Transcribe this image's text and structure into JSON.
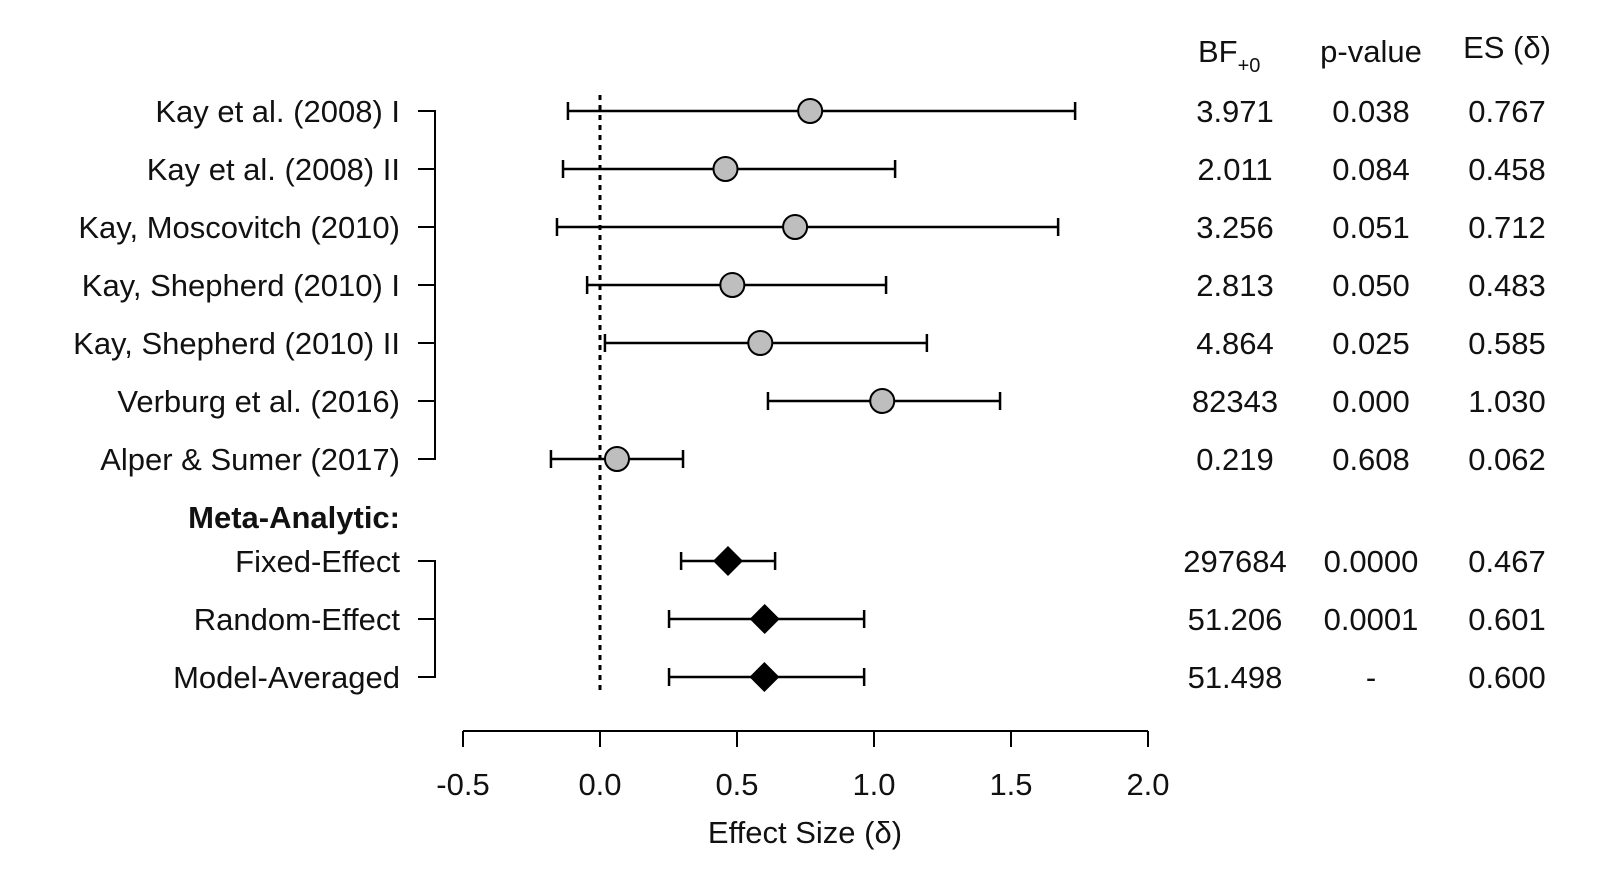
{
  "chart_data": {
    "type": "forest",
    "xlabel": "Effect Size (δ)",
    "xlim": [
      -0.5,
      2.0
    ],
    "xticks": [
      "-0.5",
      "0.0",
      "0.5",
      "1.0",
      "1.5",
      "2.0"
    ],
    "xtick_values": [
      -0.5,
      0.0,
      0.5,
      1.0,
      1.5,
      2.0
    ],
    "reference_line": 0.0,
    "columns": {
      "bf_main": "BF",
      "bf_sub": "+0",
      "p": "p-value",
      "es": "ES (δ)"
    },
    "studies": [
      {
        "label": "Kay et al. (2008) I",
        "es": 0.767,
        "lo": -0.117,
        "hi": 1.734,
        "bf": "3.971",
        "p": "0.038",
        "es_text": "0.767"
      },
      {
        "label": "Kay et al. (2008) II",
        "es": 0.458,
        "lo": -0.135,
        "hi": 1.077,
        "bf": "2.011",
        "p": "0.084",
        "es_text": "0.458"
      },
      {
        "label": "Kay, Moscovitch (2010)",
        "es": 0.712,
        "lo": -0.157,
        "hi": 1.672,
        "bf": "3.256",
        "p": "0.051",
        "es_text": "0.712"
      },
      {
        "label": "Kay, Shepherd (2010) I",
        "es": 0.483,
        "lo": -0.047,
        "hi": 1.044,
        "bf": "2.813",
        "p": "0.050",
        "es_text": "0.483"
      },
      {
        "label": "Kay, Shepherd (2010) II",
        "es": 0.585,
        "lo": 0.018,
        "hi": 1.193,
        "bf": "4.864",
        "p": "0.025",
        "es_text": "0.585"
      },
      {
        "label": "Verburg et al. (2016)",
        "es": 1.03,
        "lo": 0.613,
        "hi": 1.46,
        "bf": "82343",
        "p": "0.000",
        "es_text": "1.030"
      },
      {
        "label": "Alper & Sumer (2017)",
        "es": 0.062,
        "lo": -0.179,
        "hi": 0.303,
        "bf": "0.219",
        "p": "0.608",
        "es_text": "0.062"
      }
    ],
    "meta_heading": "Meta-Analytic:",
    "meta": [
      {
        "label": "Fixed-Effect",
        "es": 0.467,
        "lo": 0.296,
        "hi": 0.639,
        "bf": "297684",
        "p": "0.0000",
        "es_text": "0.467"
      },
      {
        "label": "Random-Effect",
        "es": 0.601,
        "lo": 0.252,
        "hi": 0.964,
        "bf": "51.206",
        "p": "0.0001",
        "es_text": "0.601"
      },
      {
        "label": "Model-Averaged",
        "es": 0.6,
        "lo": 0.252,
        "hi": 0.964,
        "bf": "51.498",
        "p": "-",
        "es_text": "0.600"
      }
    ],
    "colors": {
      "study_point": "#bebebe",
      "meta_point": "#000000",
      "line": "#000000"
    }
  }
}
